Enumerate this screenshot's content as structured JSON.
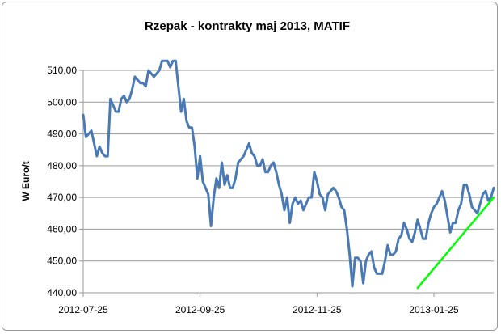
{
  "chart_data": {
    "type": "line",
    "title": "Rzepak - kontrakty maj 2013, MATIF",
    "ylabel": "W Euro/t",
    "xlabel": "",
    "ylim": [
      440,
      510
    ],
    "yticks": [
      "440,00",
      "450,00",
      "460,00",
      "470,00",
      "480,00",
      "490,00",
      "500,00",
      "510,00"
    ],
    "ytick_values": [
      440,
      450,
      460,
      470,
      480,
      490,
      500,
      510
    ],
    "xticks": [
      "2012-07-25",
      "2012-09-25",
      "2012-11-25",
      "2013-01-25"
    ],
    "xtick_index": [
      0,
      43,
      86,
      129
    ],
    "grid": true,
    "legend": "none",
    "colors": {
      "series": "#4a7ab5",
      "trend": "#00ff00",
      "grid": "#9a9a9a"
    },
    "series": [
      {
        "values": [
          496,
          489,
          490,
          491,
          487,
          483,
          486,
          484,
          483,
          483,
          501,
          499,
          497,
          497,
          501,
          502,
          500,
          501,
          504,
          508,
          507,
          506,
          506,
          505,
          510,
          509,
          508,
          509,
          510,
          513,
          513,
          513,
          511,
          513,
          513,
          505,
          497,
          501,
          494,
          492,
          492,
          486,
          476,
          483,
          475,
          473,
          471,
          461,
          470,
          476,
          473,
          481,
          474,
          477,
          473,
          473,
          476,
          481,
          482,
          483,
          485,
          487,
          484,
          483,
          480,
          480,
          482,
          478,
          478,
          480,
          481,
          478,
          474,
          471,
          466,
          470,
          462,
          468,
          470,
          468,
          469,
          466,
          468,
          470,
          470,
          478,
          475,
          471,
          470,
          466,
          471,
          472,
          473,
          472,
          470,
          467,
          466,
          460,
          452,
          442,
          451,
          451,
          450,
          443,
          450,
          452,
          453,
          448,
          446,
          446,
          446,
          450,
          455,
          452,
          452,
          453,
          457,
          458,
          462,
          460,
          457,
          456,
          459,
          463,
          460,
          457,
          457,
          462,
          465,
          467,
          468,
          470,
          472,
          469,
          464,
          459,
          462,
          462,
          466,
          468,
          474,
          474,
          471,
          467,
          466,
          465,
          468,
          471,
          472,
          469,
          470,
          473
        ]
      }
    ],
    "trendline": {
      "from": [
        123,
        441.5
      ],
      "to": [
        151,
        470
      ]
    }
  }
}
